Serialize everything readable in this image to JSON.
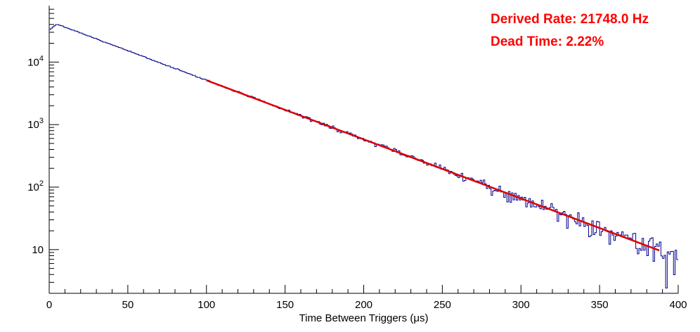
{
  "chart_data": {
    "type": "histogram",
    "title": "",
    "xlabel": "Time Between Triggers (μs)",
    "ylabel": "",
    "x_range": [
      0,
      400
    ],
    "y_scale": "log",
    "y_range": [
      2,
      80000
    ],
    "grid": false,
    "legend": "none",
    "x_ticks": [
      0,
      50,
      100,
      150,
      200,
      250,
      300,
      350,
      400
    ],
    "x_minor_tick_step": 10,
    "y_ticks": [
      {
        "value": 10,
        "base": "10",
        "exp": ""
      },
      {
        "value": 100,
        "base": "10",
        "exp": "2"
      },
      {
        "value": 1000,
        "base": "10",
        "exp": "3"
      },
      {
        "value": 10000,
        "base": "10",
        "exp": "4"
      }
    ],
    "histogram": {
      "color": "#00008b",
      "bin_width_us": 1,
      "noise_seed": 7,
      "model": {
        "amplitude": 45000,
        "decay_per_us": 0.021748,
        "deadtime_rise_us": 5,
        "deadtime_floor_fraction": 0.72
      },
      "sample_points": [
        [
          5,
          43000
        ],
        [
          50,
          15100
        ],
        [
          100,
          5100
        ],
        [
          150,
          1720
        ],
        [
          200,
          580
        ],
        [
          250,
          196
        ],
        [
          300,
          66
        ],
        [
          350,
          22
        ],
        [
          400,
          8
        ]
      ]
    },
    "fit": {
      "color": "#dd0000",
      "x_start": 100,
      "x_end": 388,
      "y_start": 5113,
      "y_end": 9.7
    },
    "annotations": [
      {
        "text": "Derived Rate: 21748.0 Hz",
        "color": "#ff0000"
      },
      {
        "text": "Dead Time: 2.22%",
        "color": "#ff0000"
      }
    ]
  }
}
